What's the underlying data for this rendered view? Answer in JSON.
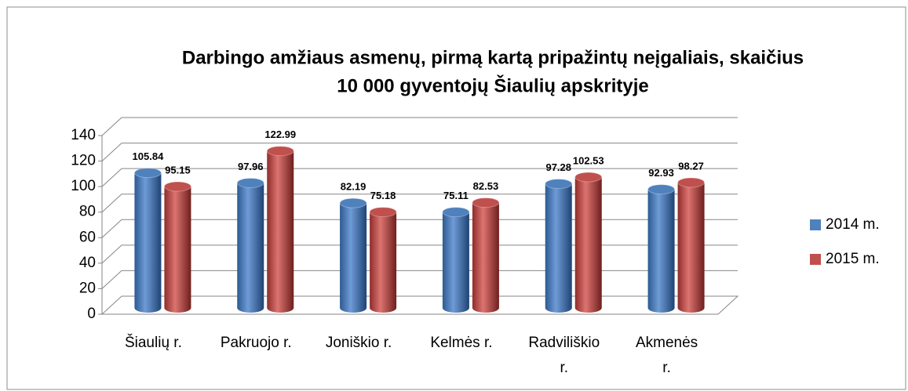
{
  "chart_data": {
    "type": "bar",
    "title": [
      "Darbingo amžiaus asmenų, pirmą kartą pripažintų neįgaliais, skaičius",
      "10 000 gyventojų Šiaulių apskrityje"
    ],
    "categories": [
      "Šiaulių r.",
      "Pakruojo r.",
      "Joniškio r.",
      "Kelmės r.",
      "Radviliškio r.",
      "Akmenės r."
    ],
    "series": [
      {
        "name": "2014 m.",
        "color": "#4f81bd",
        "values": [
          105.84,
          97.96,
          82.19,
          75.11,
          97.28,
          92.93
        ]
      },
      {
        "name": "2015 m.",
        "color": "#c0504d",
        "values": [
          95.15,
          122.99,
          75.18,
          82.53,
          102.53,
          98.27
        ]
      }
    ],
    "ylim": [
      0,
      140
    ],
    "yticks": [
      0,
      20,
      40,
      60,
      80,
      100,
      120,
      140
    ],
    "grid": true,
    "legend": "right"
  }
}
